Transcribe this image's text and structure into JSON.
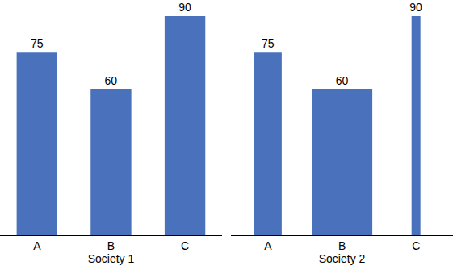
{
  "chart_data": [
    {
      "type": "bar",
      "xlabel": "Society 1",
      "categories": [
        "A",
        "B",
        "C"
      ],
      "values": [
        75,
        60,
        90
      ],
      "widths": [
        0.55,
        0.55,
        0.55
      ],
      "color": "#4a72bc",
      "ylim": [
        0,
        90
      ],
      "grid": false,
      "data_labels": true,
      "tick_labels": "x"
    },
    {
      "type": "bar",
      "xlabel": "Society 2",
      "categories": [
        "A",
        "B",
        "C"
      ],
      "values": [
        75,
        60,
        90
      ],
      "widths": [
        0.37,
        0.82,
        0.12
      ],
      "color": "#4a72bc",
      "ylim": [
        0,
        90
      ],
      "grid": false,
      "data_labels": true,
      "tick_labels": "x"
    }
  ]
}
